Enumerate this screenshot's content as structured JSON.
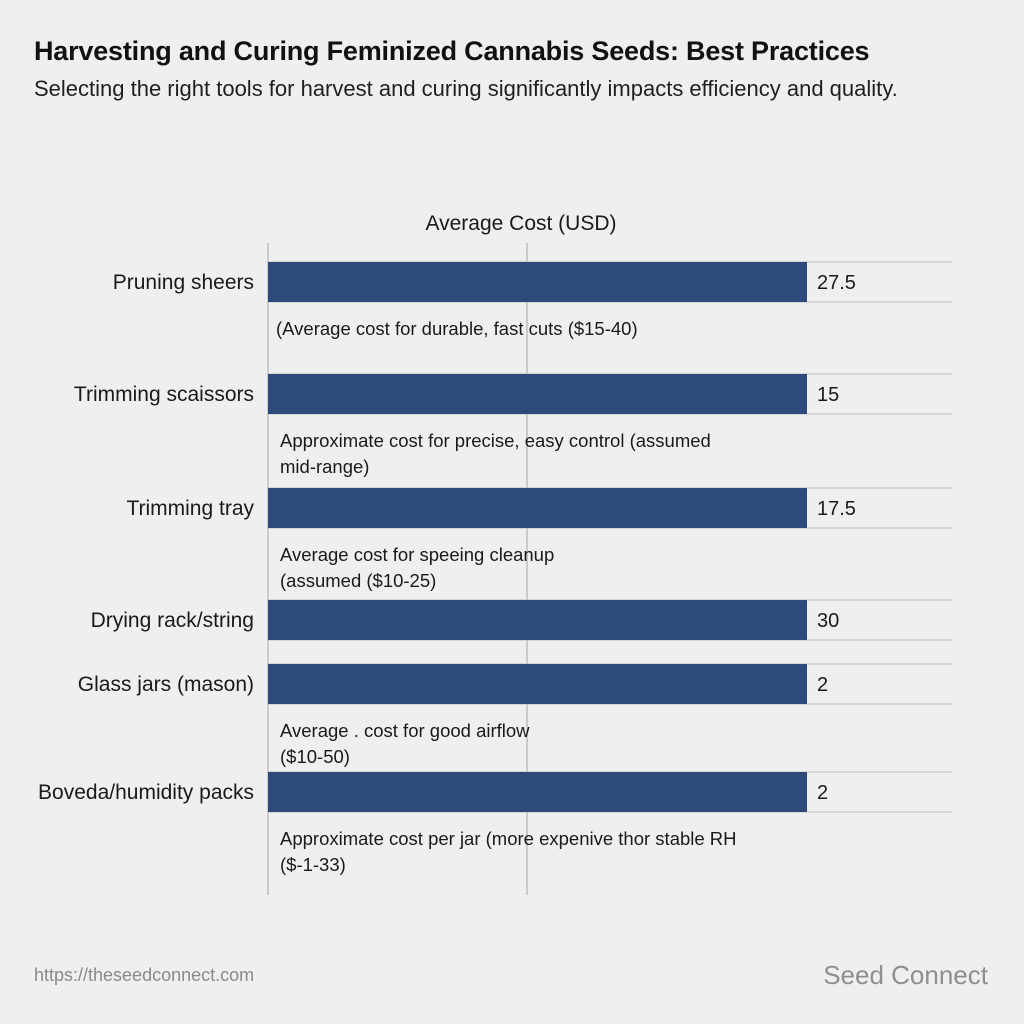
{
  "header": {
    "title": "Harvesting and Curing Feminized Cannabis Seeds: Best Practices",
    "subtitle": "Selecting the right tools for harvest and curing significantly impacts efficiency and quality."
  },
  "footer": {
    "url": "https://theseedconnect.com",
    "brand": "Seed Connect"
  },
  "colors": {
    "bar": "#2c4a7a",
    "grid": "#bdbdbd",
    "text": "#1a1a1a"
  },
  "chart_data": {
    "type": "bar",
    "orientation": "horizontal",
    "title": "Average Cost (USD)",
    "xlabel": "Average Cost (USD)",
    "ylabel": "",
    "categories": [
      "Pruning sheers",
      "Trimming scaissors",
      "Trimming tray",
      "Drying rack/string",
      "Glass jars (mason)",
      "Boveda/humidity packs"
    ],
    "values": [
      27.5,
      15,
      17.5,
      30,
      2,
      2
    ],
    "value_labels": [
      "27.5",
      "15",
      "17.5",
      "30",
      "2",
      "2"
    ],
    "annotations": [
      [
        "(Average cost for durable, fast cuts ($15-40)"
      ],
      [
        "Approximate cost for precise, easy control (assumed",
        "mid-range)"
      ],
      [
        "Average cost for speeing cleanup",
        "(assumed ($10-25)"
      ],
      [],
      [
        "Average . cost for good airflow",
        "($10-50)"
      ],
      [
        "Approximate cost per jar (more expenive thor stable RH",
        "($-1-33)"
      ]
    ],
    "grid": true,
    "legend": "none"
  }
}
